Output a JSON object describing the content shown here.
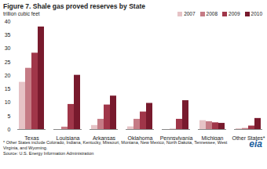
{
  "chart_data": {
    "type": "bar",
    "title": "Figure 7. Shale gas proved reserves by State",
    "subtitle": "trillion cubic feet",
    "categories": [
      "Texas",
      "Louisiana",
      "Arkansas",
      "Oklahoma",
      "Pennsylvania",
      "Michigan",
      "Other States*"
    ],
    "series": [
      {
        "name": "2007",
        "color": "#e6c3c6",
        "values": [
          17.5,
          0,
          1.5,
          1.0,
          0,
          3.3,
          0.3
        ]
      },
      {
        "name": "2008",
        "color": "#c57b85",
        "values": [
          22.7,
          0.9,
          3.8,
          3.8,
          0.1,
          2.9,
          0.4
        ]
      },
      {
        "name": "2009",
        "color": "#a03649",
        "values": [
          28.3,
          9.3,
          9.1,
          6.5,
          3.8,
          2.5,
          1.3
        ]
      },
      {
        "name": "2010",
        "color": "#781a2d",
        "values": [
          38,
          20.1,
          12.4,
          9.7,
          10.7,
          2.3,
          4.1
        ]
      }
    ],
    "ylim": [
      0,
      40
    ],
    "yticks": [
      0,
      5,
      10,
      15,
      20,
      25,
      30,
      35,
      40
    ],
    "grid": false,
    "legend": "top-right",
    "footnote": "* Other States include Colorado, Indiana, Kentucky, Missouri, Montana, New Mexico, North Dakota, Tennessee, West Virginia, and Wyoming.",
    "source": "Source: U.S. Energy Information Administration",
    "logo": "eia"
  }
}
